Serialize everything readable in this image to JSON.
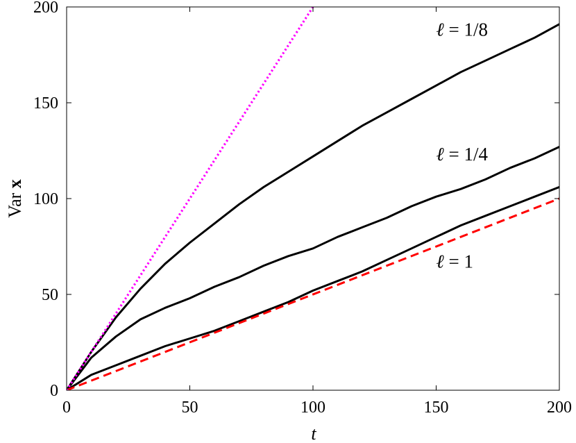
{
  "chart_data": {
    "type": "line",
    "xlabel": "t",
    "ylabel": "Var x",
    "xlim": [
      0,
      200
    ],
    "ylim": [
      0,
      200
    ],
    "xticks": [
      0,
      50,
      100,
      150,
      200
    ],
    "yticks": [
      0,
      50,
      100,
      150,
      200
    ],
    "grid": false,
    "legend": "none",
    "annotations": [
      {
        "text": "ℓ = 1/8",
        "x": 150,
        "y": 185
      },
      {
        "text": "ℓ = 1/4",
        "x": 150,
        "y": 120
      },
      {
        "text": "ℓ = 1",
        "x": 150,
        "y": 64
      }
    ],
    "series": [
      {
        "color": "#000000",
        "style": "solid",
        "x": [
          0,
          10,
          20,
          30,
          40,
          50,
          60,
          70,
          80,
          90,
          100,
          110,
          120,
          130,
          140,
          150,
          160,
          170,
          180,
          190,
          200
        ],
        "y": [
          0,
          20,
          38,
          53,
          66,
          77,
          87,
          97,
          106,
          114,
          122,
          130,
          138,
          145,
          152,
          159,
          166,
          172,
          178,
          184,
          191
        ]
      },
      {
        "color": "#000000",
        "style": "solid",
        "x": [
          0,
          10,
          20,
          30,
          40,
          50,
          60,
          70,
          80,
          90,
          100,
          110,
          120,
          130,
          140,
          150,
          160,
          170,
          180,
          190,
          200
        ],
        "y": [
          0,
          17,
          28,
          37,
          43,
          48,
          54,
          59,
          65,
          70,
          74,
          80,
          85,
          90,
          96,
          101,
          105,
          110,
          116,
          121,
          127
        ]
      },
      {
        "color": "#000000",
        "style": "solid",
        "x": [
          0,
          10,
          20,
          30,
          40,
          50,
          60,
          70,
          80,
          90,
          100,
          110,
          120,
          130,
          140,
          150,
          160,
          170,
          180,
          190,
          200
        ],
        "y": [
          0,
          8,
          13,
          18,
          23,
          27,
          31,
          36,
          41,
          46,
          52,
          57,
          62,
          68,
          74,
          80,
          86,
          91,
          96,
          101,
          106
        ]
      },
      {
        "color": "#ff0000",
        "style": "dashed",
        "x": [
          0,
          200
        ],
        "y": [
          0,
          100
        ]
      },
      {
        "color": "#ff00ff",
        "style": "dotted",
        "x": [
          0,
          100
        ],
        "y": [
          0,
          200
        ]
      }
    ]
  }
}
